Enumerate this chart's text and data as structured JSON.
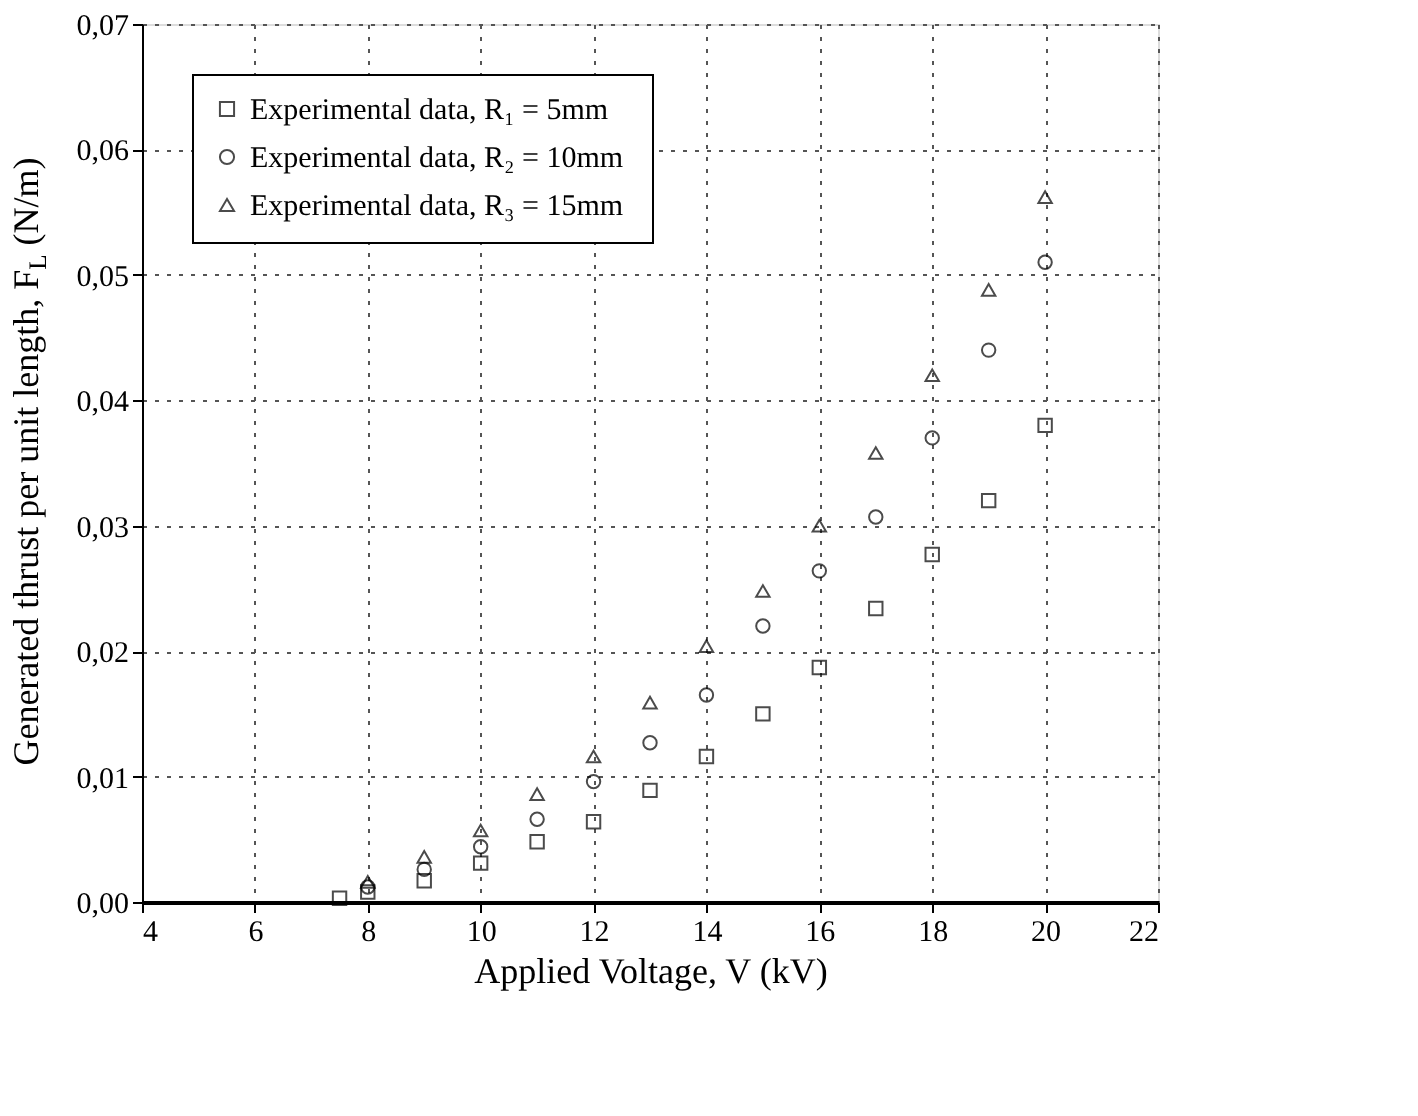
{
  "chart_data": {
    "type": "scatter",
    "xlabel": "Applied Voltage, V (kV)",
    "ylabel": "Generated thrust per unit length, F$_{L}$ (N/m)",
    "xlim": [
      4,
      22
    ],
    "xticks": [
      4,
      6,
      8,
      10,
      12,
      14,
      16,
      18,
      20,
      22
    ],
    "ylim": [
      0,
      0.07
    ],
    "yticks": [
      {
        "value": 0,
        "label": "0,00"
      },
      {
        "value": 0.01,
        "label": "0,01"
      },
      {
        "value": 0.02,
        "label": "0,02"
      },
      {
        "value": 0.03,
        "label": "0,03"
      },
      {
        "value": 0.04,
        "label": "0,04"
      },
      {
        "value": 0.05,
        "label": "0,05"
      },
      {
        "value": 0.06,
        "label": "0,06"
      },
      {
        "value": 0.07,
        "label": "0,07"
      }
    ],
    "grid": true,
    "legend": "top left",
    "series": [
      {
        "name": "Experimental data,  R₁ = 5mm",
        "color": "#000000",
        "marker": "square",
        "x": [
          7.5,
          8,
          9,
          10,
          11,
          12,
          13,
          14,
          15,
          16,
          17,
          18,
          19,
          20
        ],
        "values": [
          0.0003,
          0.0008,
          0.0017,
          0.0031,
          0.0048,
          0.0064,
          0.0089,
          0.0116,
          0.015,
          0.0187,
          0.0234,
          0.0277,
          0.032,
          0.038
        ]
      },
      {
        "name": "Experimental data,  R₂ = 10mm",
        "color": "#000000",
        "marker": "circle",
        "x": [
          8,
          9,
          10,
          11,
          12,
          13,
          14,
          15,
          16,
          17,
          18,
          19,
          20
        ],
        "values": [
          0.0012,
          0.0026,
          0.0044,
          0.0066,
          0.0096,
          0.0127,
          0.0165,
          0.022,
          0.0264,
          0.0307,
          0.037,
          0.044,
          0.051
        ]
      },
      {
        "name": "Experimental data,  R₃ = 15mm",
        "color": "#000000",
        "marker": "triangle",
        "x": [
          8,
          9,
          10,
          11,
          12,
          13,
          14,
          15,
          16,
          17,
          18,
          19,
          20
        ],
        "values": [
          0.0016,
          0.0036,
          0.0057,
          0.0086,
          0.0116,
          0.0159,
          0.0204,
          0.0248,
          0.03,
          0.0358,
          0.042,
          0.0488,
          0.0562
        ]
      }
    ]
  }
}
